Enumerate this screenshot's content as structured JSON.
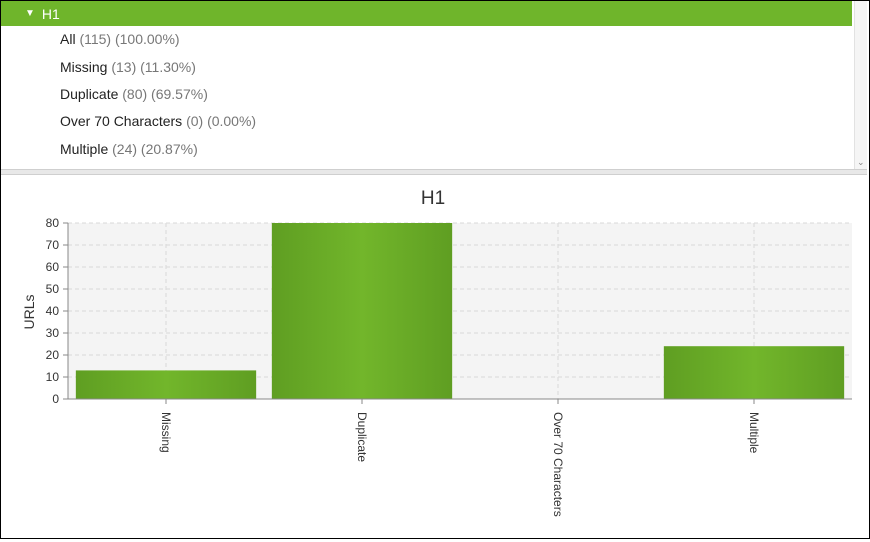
{
  "tree": {
    "header_label": "H1",
    "items": [
      {
        "name": "All",
        "meta": "(115) (100.00%)"
      },
      {
        "name": "Missing",
        "meta": "(13) (11.30%)"
      },
      {
        "name": "Duplicate",
        "meta": "(80) (69.57%)"
      },
      {
        "name": "Over 70 Characters",
        "meta": "(0) (0.00%)"
      },
      {
        "name": "Multiple",
        "meta": "(24) (20.87%)"
      }
    ]
  },
  "colors": {
    "accent": "#6fb52b",
    "bar": "#72b62b",
    "bar_dark": "#5f9e22"
  },
  "chart_data": {
    "type": "bar",
    "title": "H1",
    "xlabel": "",
    "ylabel": "URLs",
    "categories": [
      "Missing",
      "Duplicate",
      "Over 70 Characters",
      "Multiple"
    ],
    "values": [
      13,
      80,
      0,
      24
    ],
    "ylim": [
      0,
      80
    ],
    "yticks": [
      0,
      10,
      20,
      30,
      40,
      50,
      60,
      70,
      80
    ],
    "grid": true,
    "legend": "none"
  }
}
